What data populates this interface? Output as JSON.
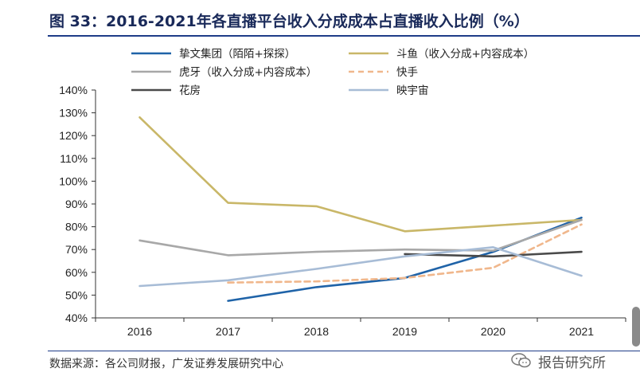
{
  "title": "图 33：2016-2021年各直播平台收入分成成本占直播收入比例（%）",
  "source": "数据来源：各公司财报，广发证券发展研究中心",
  "watermark": "报告研究所",
  "chart_data": {
    "type": "line",
    "title": "2016-2021年各直播平台收入分成成本占直播收入比例（%）",
    "xlabel": "",
    "ylabel": "",
    "categories": [
      "2016",
      "2017",
      "2018",
      "2019",
      "2020",
      "2021"
    ],
    "yticks": [
      "40%",
      "50%",
      "60%",
      "70%",
      "80%",
      "90%",
      "100%",
      "110%",
      "120%",
      "130%",
      "140%"
    ],
    "ylim": [
      40,
      140
    ],
    "legend_position": "top",
    "series": [
      {
        "name": "挚文集团（陌陌+探探）",
        "color": "#1f63a8",
        "dash": false,
        "values": [
          null,
          47.5,
          53.5,
          57.5,
          69,
          84
        ]
      },
      {
        "name": "斗鱼（收入分成+内容成本）",
        "color": "#c9b768",
        "dash": false,
        "values": [
          128,
          90.5,
          89,
          78,
          80.5,
          83
        ]
      },
      {
        "name": "虎牙（收入分成+内容成本）",
        "color": "#a8a8a8",
        "dash": false,
        "values": [
          74,
          67.5,
          69,
          70,
          69.5,
          83
        ]
      },
      {
        "name": "快手",
        "color": "#f0b78c",
        "dash": true,
        "values": [
          null,
          55.5,
          56,
          57.5,
          62,
          81
        ]
      },
      {
        "name": "花房",
        "color": "#4a4a4a",
        "dash": false,
        "values": [
          null,
          null,
          null,
          68,
          67,
          69
        ]
      },
      {
        "name": "映宇宙",
        "color": "#a7bcd6",
        "dash": false,
        "values": [
          54,
          56.5,
          61.5,
          67,
          71,
          58.5
        ]
      }
    ]
  }
}
